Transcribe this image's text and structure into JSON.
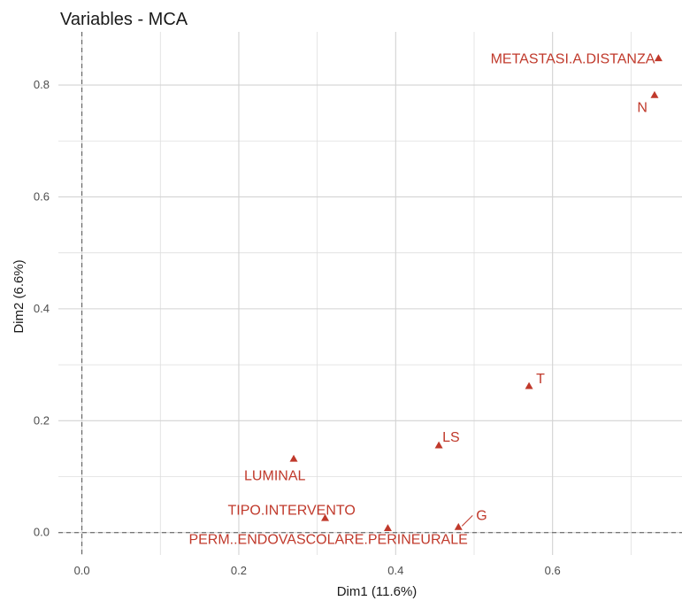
{
  "chart_data": {
    "type": "scatter",
    "title": "Variables - MCA",
    "xlabel": "Dim1 (11.6%)",
    "ylabel": "Dim2 (6.6%)",
    "xlim": [
      -0.03,
      0.765
    ],
    "ylim": [
      -0.04,
      0.895
    ],
    "x_ticks": [
      "0.0",
      "0.2",
      "0.4",
      "0.6"
    ],
    "y_ticks": [
      "0.0",
      "0.2",
      "0.4",
      "0.6",
      "0.8"
    ],
    "grid": true,
    "reference_lines": {
      "x": 0,
      "y": 0
    },
    "marker": "triangle",
    "point_color": "#c0392b",
    "points": [
      {
        "name": "METASTASI.A.DISTANZA",
        "x": 0.735,
        "y": 0.848
      },
      {
        "name": "N",
        "x": 0.73,
        "y": 0.782
      },
      {
        "name": "T",
        "x": 0.57,
        "y": 0.262
      },
      {
        "name": "LS",
        "x": 0.455,
        "y": 0.156
      },
      {
        "name": "LUMINAL",
        "x": 0.27,
        "y": 0.132
      },
      {
        "name": "TIPO.INTERVENTO",
        "x": 0.31,
        "y": 0.026
      },
      {
        "name": "PERM..ENDOVASCOLARE.PERINEURALE",
        "x": 0.39,
        "y": 0.008
      },
      {
        "name": "G",
        "x": 0.48,
        "y": 0.01
      }
    ]
  }
}
